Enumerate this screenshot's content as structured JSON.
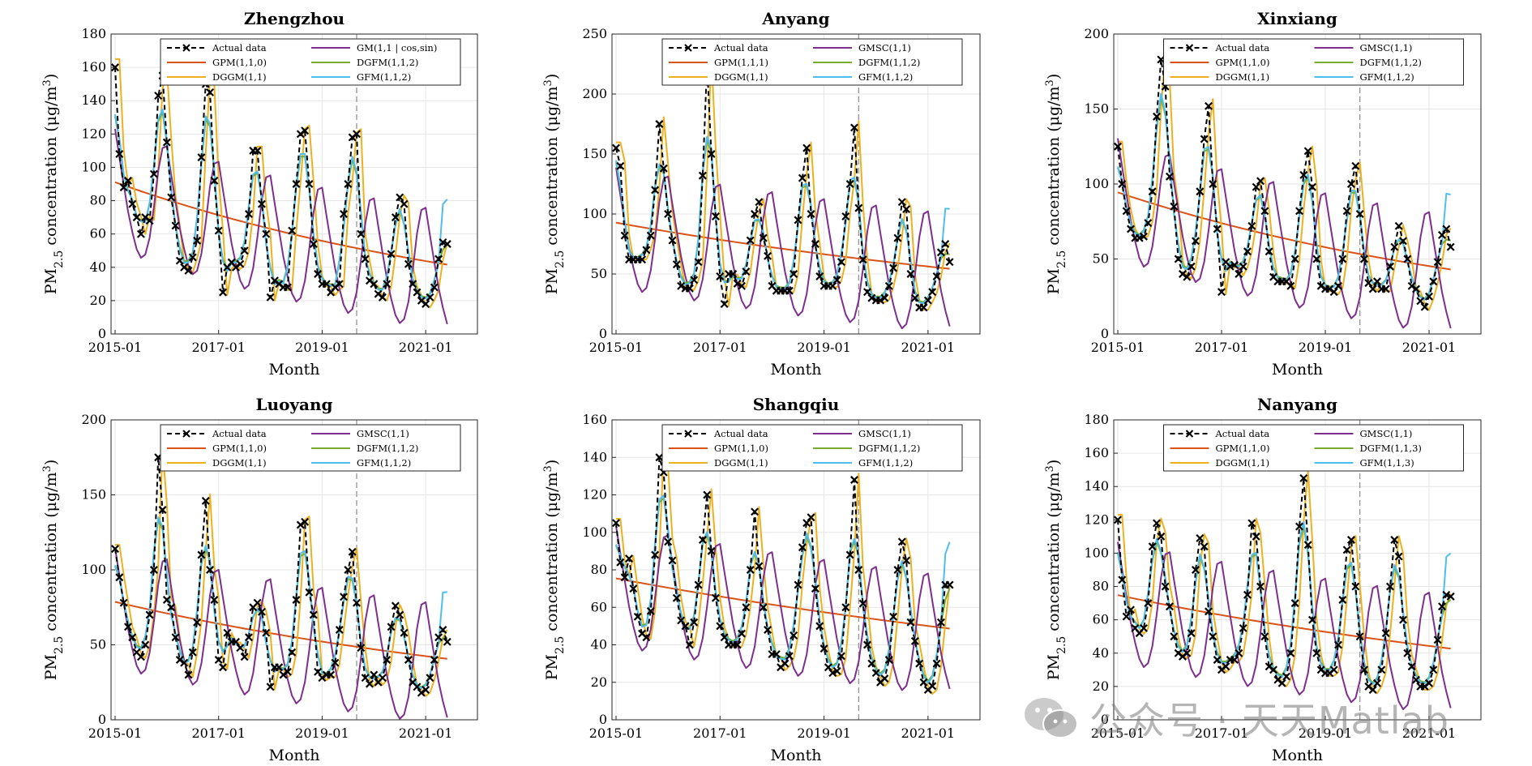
{
  "figure": {
    "x_tick_labels": [
      "2015-01",
      "2017-01",
      "2019-01",
      "2021-01"
    ],
    "x_label": "Month",
    "y_label": "PM2.5 concentration (μg/m3)"
  },
  "watermark": {
    "text": "公众号 · 天天Matlab",
    "icon": "wechat-icon"
  },
  "colors": {
    "actual": "#000000",
    "GPM": "#D95319",
    "DGGM": "#EDB120",
    "GM_GMSC": "#7E2F8E",
    "DGFM": "#77AC30",
    "GFM": "#4DBEEE"
  },
  "chart_data": [
    {
      "type": "line",
      "title": "Zhengzhou",
      "xlabel": "Month",
      "ylabel": "PM2.5 concentration (μg/m3)",
      "ylim": [
        0,
        180
      ],
      "yticks": [
        0,
        20,
        40,
        60,
        80,
        100,
        120,
        140,
        160,
        180
      ],
      "x_range": [
        "2015-01",
        "2022-01"
      ],
      "forecast_start": "2019-09",
      "grid": true,
      "legend_position": "top",
      "legend": [
        "Actual data",
        "GM(1,1 | cos,sin)",
        "GPM(1,1,0)",
        "DGFM(1,1,2)",
        "DGGM(1,1)",
        "GFM(1,1,2)"
      ],
      "actual_values": [
        160,
        108,
        88,
        92,
        78,
        70,
        60,
        70,
        68,
        96,
        143,
        155,
        115,
        82,
        65,
        44,
        40,
        38,
        46,
        56,
        106,
        150,
        145,
        92,
        62,
        25,
        40,
        43,
        40,
        42,
        50,
        72,
        110,
        110,
        78,
        60,
        22,
        32,
        30,
        28,
        28,
        62,
        90,
        120,
        122,
        90,
        54,
        36,
        30,
        30,
        25,
        28,
        30,
        72,
        90,
        118,
        120,
        60,
        45,
        32,
        30,
        24,
        22,
        30,
        48,
        70,
        82,
        78,
        42,
        30,
        25,
        20,
        18,
        22,
        28,
        45,
        55,
        54
      ]
    },
    {
      "type": "line",
      "title": "Anyang",
      "xlabel": "Month",
      "ylabel": "PM2.5 concentration (μg/m3)",
      "ylim": [
        0,
        250
      ],
      "yticks": [
        0,
        50,
        100,
        150,
        200,
        250
      ],
      "x_range": [
        "2015-01",
        "2022-01"
      ],
      "forecast_start": "2019-09",
      "grid": true,
      "legend_position": "top",
      "legend": [
        "Actual data",
        "GMSC(1,1)",
        "GPM(1,1,1)",
        "DGFM(1,1,2)",
        "DGGM(1,1)",
        "GFM(1,1,2)"
      ],
      "actual_values": [
        155,
        140,
        82,
        62,
        62,
        62,
        62,
        70,
        82,
        120,
        175,
        138,
        100,
        78,
        58,
        40,
        38,
        38,
        45,
        60,
        132,
        225,
        150,
        98,
        48,
        25,
        50,
        50,
        42,
        40,
        52,
        78,
        100,
        110,
        80,
        65,
        40,
        36,
        36,
        36,
        36,
        50,
        95,
        130,
        155,
        100,
        75,
        48,
        40,
        40,
        40,
        45,
        60,
        98,
        125,
        172,
        105,
        62,
        35,
        30,
        28,
        28,
        30,
        40,
        55,
        80,
        110,
        104,
        50,
        30,
        22,
        22,
        28,
        35,
        48,
        68,
        75,
        60
      ]
    },
    {
      "type": "line",
      "title": "Xinxiang",
      "xlabel": "Month",
      "ylabel": "PM2.5 concentration (μg/m3)",
      "ylim": [
        0,
        200
      ],
      "yticks": [
        0,
        50,
        100,
        150,
        200
      ],
      "x_range": [
        "2015-01",
        "2022-01"
      ],
      "forecast_start": "2019-09",
      "grid": true,
      "legend_position": "top",
      "legend": [
        "Actual data",
        "GMSC(1,1)",
        "GPM(1,1,0)",
        "DGFM(1,1,2)",
        "DGGM(1,1)",
        "GFM(1,1,2)"
      ],
      "actual_values": [
        125,
        100,
        82,
        70,
        64,
        64,
        65,
        74,
        95,
        145,
        183,
        165,
        105,
        85,
        50,
        40,
        38,
        45,
        62,
        95,
        130,
        152,
        100,
        70,
        28,
        48,
        45,
        46,
        40,
        45,
        55,
        72,
        98,
        102,
        82,
        55,
        38,
        35,
        35,
        35,
        32,
        50,
        82,
        106,
        122,
        98,
        50,
        32,
        30,
        30,
        28,
        32,
        50,
        82,
        100,
        112,
        80,
        50,
        34,
        30,
        35,
        30,
        30,
        45,
        58,
        72,
        62,
        50,
        32,
        30,
        22,
        18,
        25,
        35,
        48,
        66,
        70,
        58
      ]
    },
    {
      "type": "line",
      "title": "Luoyang",
      "xlabel": "Month",
      "ylabel": "PM2.5 concentration (μg/m3)",
      "ylim": [
        0,
        200
      ],
      "yticks": [
        0,
        50,
        100,
        150,
        200
      ],
      "x_range": [
        "2015-01",
        "2022-01"
      ],
      "forecast_start": "2019-09",
      "grid": true,
      "legend_position": "top",
      "legend": [
        "Actual data",
        "GMSC(1,1)",
        "GPM(1,1,0)",
        "DGFM(1,1,2)",
        "DGGM(1,1)",
        "GFM(1,1,2)"
      ],
      "actual_values": [
        114,
        95,
        78,
        62,
        55,
        45,
        42,
        50,
        70,
        100,
        175,
        140,
        80,
        75,
        55,
        40,
        38,
        30,
        45,
        65,
        110,
        146,
        100,
        80,
        40,
        35,
        58,
        52,
        52,
        48,
        42,
        55,
        75,
        78,
        72,
        58,
        22,
        35,
        35,
        30,
        32,
        45,
        80,
        130,
        132,
        85,
        70,
        32,
        28,
        30,
        30,
        38,
        60,
        82,
        100,
        112,
        78,
        48,
        28,
        24,
        30,
        25,
        28,
        40,
        62,
        76,
        70,
        58,
        40,
        25,
        22,
        18,
        20,
        28,
        40,
        55,
        60,
        52
      ]
    },
    {
      "type": "line",
      "title": "Shangqiu",
      "xlabel": "Month",
      "ylabel": "PM2.5 concentration (μg/m3)",
      "ylim": [
        0,
        160
      ],
      "yticks": [
        0,
        20,
        40,
        60,
        80,
        100,
        120,
        140,
        160
      ],
      "x_range": [
        "2015-01",
        "2022-01"
      ],
      "forecast_start": "2019-09",
      "grid": true,
      "legend_position": "top",
      "legend": [
        "Actual data",
        "GMSC(1,1)",
        "GPM(1,1,0)",
        "DGFM(1,1,2)",
        "DGGM(1,1)",
        "GFM(1,1,2)"
      ],
      "actual_values": [
        105,
        84,
        76,
        86,
        70,
        55,
        46,
        44,
        58,
        88,
        140,
        132,
        95,
        85,
        65,
        53,
        50,
        40,
        52,
        72,
        96,
        120,
        90,
        65,
        50,
        44,
        40,
        40,
        40,
        46,
        60,
        80,
        111,
        82,
        60,
        48,
        35,
        35,
        28,
        30,
        34,
        45,
        72,
        92,
        105,
        108,
        70,
        50,
        38,
        28,
        25,
        26,
        34,
        60,
        88,
        128,
        80,
        62,
        40,
        30,
        25,
        20,
        22,
        32,
        55,
        80,
        95,
        85,
        52,
        42,
        30,
        20,
        16,
        18,
        30,
        52,
        72,
        72
      ]
    },
    {
      "type": "line",
      "title": "Nanyang",
      "xlabel": "Month",
      "ylabel": "PM2.5 concentration (μg/m3)",
      "ylim": [
        0,
        180
      ],
      "yticks": [
        0,
        20,
        40,
        60,
        80,
        100,
        120,
        140,
        160,
        180
      ],
      "x_range": [
        "2015-01",
        "2022-01"
      ],
      "forecast_start": "2019-09",
      "grid": true,
      "legend_position": "top",
      "legend": [
        "Actual data",
        "GMSC(1,1)",
        "GPM(1,1,0)",
        "DGFM(1,1,3)",
        "DGGM(1,1)",
        "GFM(1,1,3)"
      ],
      "actual_values": [
        120,
        84,
        62,
        66,
        55,
        52,
        55,
        70,
        104,
        118,
        110,
        80,
        68,
        50,
        40,
        38,
        40,
        52,
        90,
        109,
        104,
        65,
        50,
        36,
        30,
        32,
        36,
        36,
        40,
        55,
        75,
        118,
        110,
        80,
        50,
        32,
        30,
        24,
        22,
        26,
        40,
        70,
        116,
        145,
        105,
        60,
        40,
        30,
        28,
        28,
        30,
        45,
        72,
        102,
        108,
        80,
        50,
        30,
        20,
        18,
        22,
        30,
        52,
        80,
        108,
        98,
        60,
        40,
        32,
        24,
        20,
        20,
        22,
        30,
        48,
        68,
        75,
        74
      ]
    }
  ]
}
